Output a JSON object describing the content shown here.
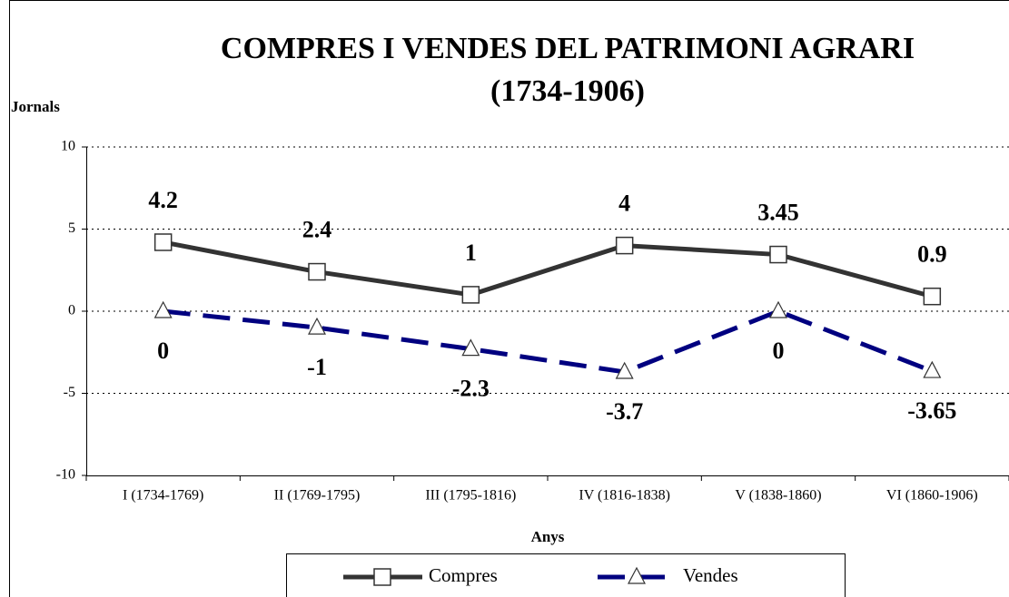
{
  "chart_data": {
    "type": "line",
    "title": [
      "COMPRES I VENDES DEL PATRIMONI AGRARI",
      "(1734-1906)"
    ],
    "y_label": "Jornals",
    "x_label": "Anys",
    "categories": [
      "I (1734-1769)",
      "II (1769-1795)",
      "III (1795-1816)",
      "IV (1816-1838)",
      "V (1838-1860)",
      "VI (1860-1906)"
    ],
    "series": [
      {
        "name": "Compres",
        "color": "#333333",
        "marker": "square",
        "dash": false,
        "values": [
          4.2,
          2.4,
          1,
          4,
          3.45,
          0.9
        ]
      },
      {
        "name": "Vendes",
        "color": "#000080",
        "marker": "triangle",
        "dash": true,
        "values": [
          0,
          -1,
          -2.3,
          -3.7,
          0,
          -3.65
        ]
      }
    ],
    "ylim": [
      -10,
      10
    ],
    "yticks": [
      -10,
      -5,
      0,
      5,
      10
    ],
    "grid": true,
    "legend": "bottom"
  }
}
